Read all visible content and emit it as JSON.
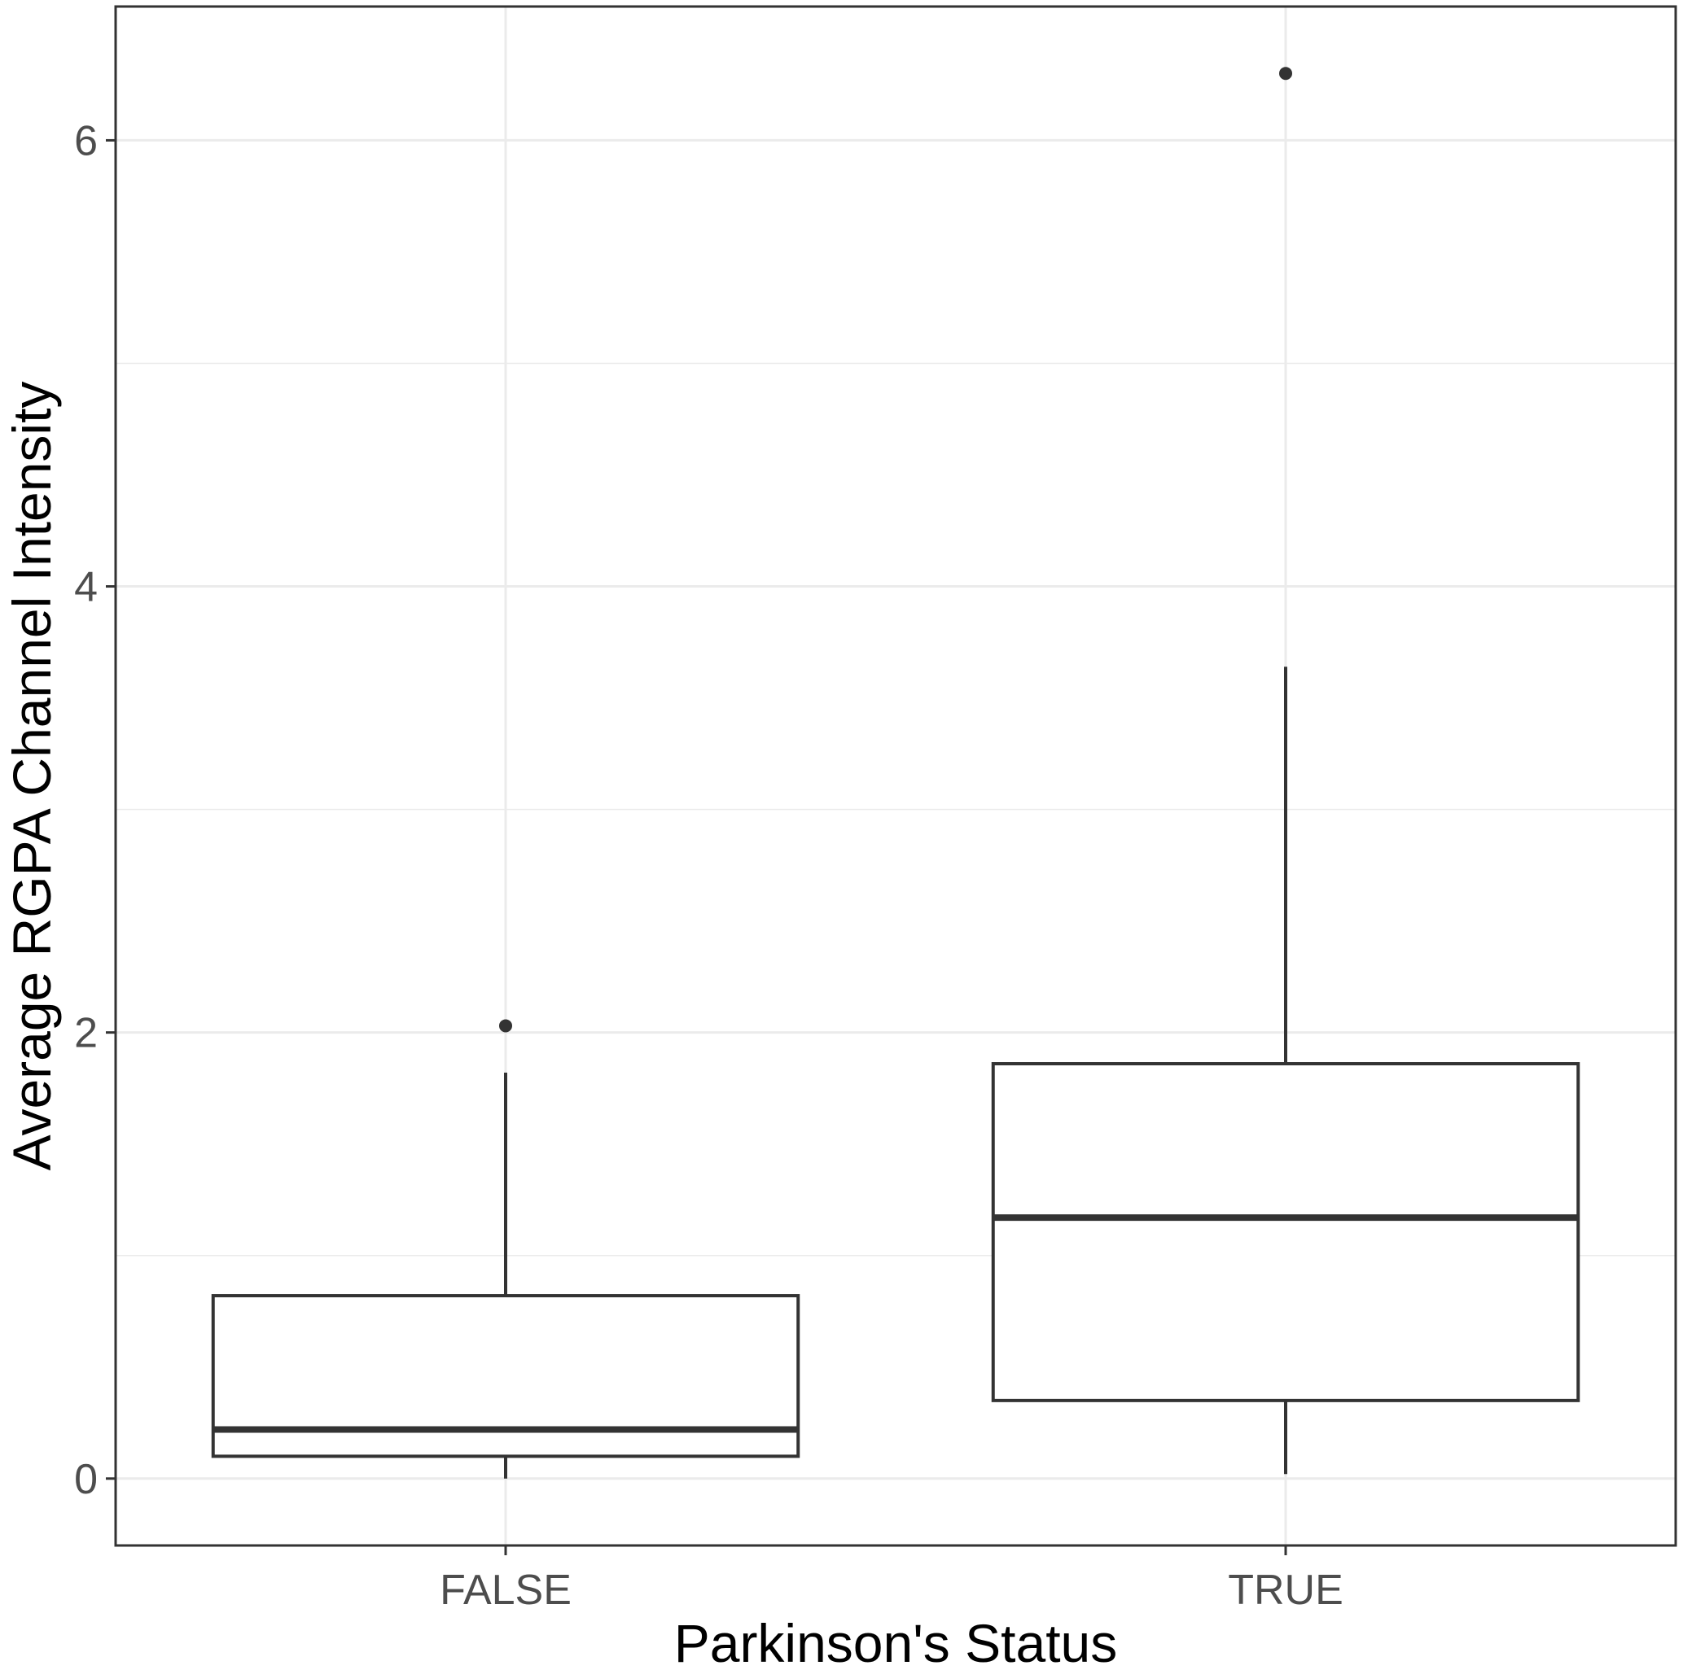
{
  "chart_data": {
    "type": "boxplot",
    "xlabel": "Parkinson's Status",
    "ylabel": "Average RGPA Channel Intensity",
    "categories": [
      "FALSE",
      "TRUE"
    ],
    "ylim": [
      -0.3,
      6.6
    ],
    "yticks": [
      0,
      2,
      4,
      6
    ],
    "ytick_labels": [
      "0",
      "2",
      "4",
      "6"
    ],
    "grid": true,
    "boxes": [
      {
        "category": "FALSE",
        "whisker_low": 0.0,
        "q1": 0.1,
        "median": 0.22,
        "q3": 0.82,
        "whisker_high": 1.82,
        "outliers": [
          2.03
        ]
      },
      {
        "category": "TRUE",
        "whisker_low": 0.02,
        "q1": 0.35,
        "median": 1.17,
        "q3": 1.86,
        "whisker_high": 3.64,
        "outliers": [
          6.3
        ]
      }
    ]
  }
}
